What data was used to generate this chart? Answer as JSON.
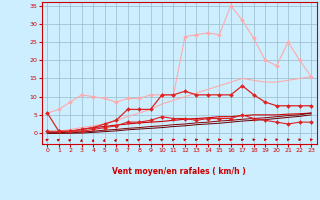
{
  "x": [
    0,
    1,
    2,
    3,
    4,
    5,
    6,
    7,
    8,
    9,
    10,
    11,
    12,
    13,
    14,
    15,
    16,
    17,
    18,
    19,
    20,
    21,
    22,
    23
  ],
  "series": [
    {
      "y": [
        5.5,
        6.5,
        8.5,
        10.5,
        10.0,
        9.5,
        8.5,
        9.5,
        9.5,
        10.5,
        10.5,
        10.5,
        26.5,
        27.0,
        27.5,
        27.0,
        35.0,
        31.0,
        26.0,
        20.0,
        18.5,
        25.0,
        20.0,
        15.5
      ],
      "color": "#ffaaaa",
      "marker": "D",
      "markersize": 2.0,
      "linewidth": 0.8,
      "zorder": 3
    },
    {
      "y": [
        0.0,
        0.5,
        1.0,
        1.5,
        2.0,
        2.5,
        3.5,
        4.5,
        5.5,
        6.5,
        8.0,
        9.0,
        10.0,
        11.0,
        12.0,
        13.0,
        14.0,
        15.0,
        14.5,
        14.0,
        14.0,
        14.5,
        15.0,
        15.5
      ],
      "color": "#ffaaaa",
      "marker": null,
      "markersize": 0,
      "linewidth": 0.8,
      "zorder": 2
    },
    {
      "y": [
        5.5,
        0.5,
        0.5,
        1.0,
        1.5,
        2.5,
        3.5,
        6.5,
        6.5,
        6.5,
        10.5,
        10.5,
        11.5,
        10.5,
        10.5,
        10.5,
        10.5,
        13.0,
        10.5,
        8.5,
        7.5,
        7.5,
        7.5,
        7.5
      ],
      "color": "#dd2222",
      "marker": "D",
      "markersize": 2.0,
      "linewidth": 0.9,
      "zorder": 4
    },
    {
      "y": [
        0.5,
        0.5,
        0.5,
        0.5,
        1.0,
        1.5,
        2.0,
        3.0,
        3.0,
        3.5,
        4.5,
        4.0,
        4.0,
        3.5,
        4.0,
        4.0,
        4.0,
        5.0,
        4.0,
        3.5,
        3.0,
        2.5,
        3.0,
        3.0
      ],
      "color": "#dd2222",
      "marker": "D",
      "markersize": 2.0,
      "linewidth": 0.8,
      "zorder": 4
    },
    {
      "y": [
        0.0,
        0.0,
        0.5,
        1.0,
        1.5,
        1.8,
        2.2,
        2.5,
        2.8,
        3.0,
        3.2,
        3.5,
        3.8,
        4.0,
        4.2,
        4.5,
        4.5,
        4.8,
        5.0,
        5.0,
        5.0,
        5.2,
        5.3,
        5.5
      ],
      "color": "#cc0000",
      "marker": null,
      "markersize": 0,
      "linewidth": 0.8,
      "zorder": 2
    },
    {
      "y": [
        0.0,
        0.0,
        0.0,
        0.3,
        0.5,
        0.8,
        1.0,
        1.3,
        1.5,
        1.8,
        2.0,
        2.3,
        2.5,
        2.8,
        3.0,
        3.3,
        3.5,
        3.8,
        4.0,
        4.2,
        4.5,
        4.8,
        5.0,
        5.5
      ],
      "color": "#880000",
      "marker": null,
      "markersize": 0,
      "linewidth": 0.7,
      "zorder": 2
    },
    {
      "y": [
        0.0,
        0.0,
        0.0,
        0.0,
        0.2,
        0.4,
        0.6,
        0.9,
        1.1,
        1.3,
        1.5,
        1.8,
        2.0,
        2.3,
        2.5,
        2.7,
        3.0,
        3.3,
        3.5,
        3.7,
        4.0,
        4.3,
        4.6,
        5.0
      ],
      "color": "#660000",
      "marker": null,
      "markersize": 0,
      "linewidth": 0.7,
      "zorder": 2
    }
  ],
  "arrow_angles_deg": [
    45,
    55,
    65,
    85,
    88,
    80,
    72,
    62,
    52,
    48,
    42,
    38,
    32,
    28,
    26,
    22,
    20,
    18,
    15,
    12,
    10,
    10,
    8,
    6
  ],
  "xlim": [
    -0.5,
    23.5
  ],
  "ylim": [
    -3.0,
    36
  ],
  "xticks": [
    0,
    1,
    2,
    3,
    4,
    5,
    6,
    7,
    8,
    9,
    10,
    11,
    12,
    13,
    14,
    15,
    16,
    17,
    18,
    19,
    20,
    21,
    22,
    23
  ],
  "yticks": [
    0,
    5,
    10,
    15,
    20,
    25,
    30,
    35
  ],
  "xlabel": "Vent moyen/en rafales ( km/h )",
  "background_color": "#cceeff",
  "grid_color": "#99bbcc",
  "axis_color": "#cc0000",
  "label_color": "#cc0000",
  "arrow_color": "#cc0000"
}
